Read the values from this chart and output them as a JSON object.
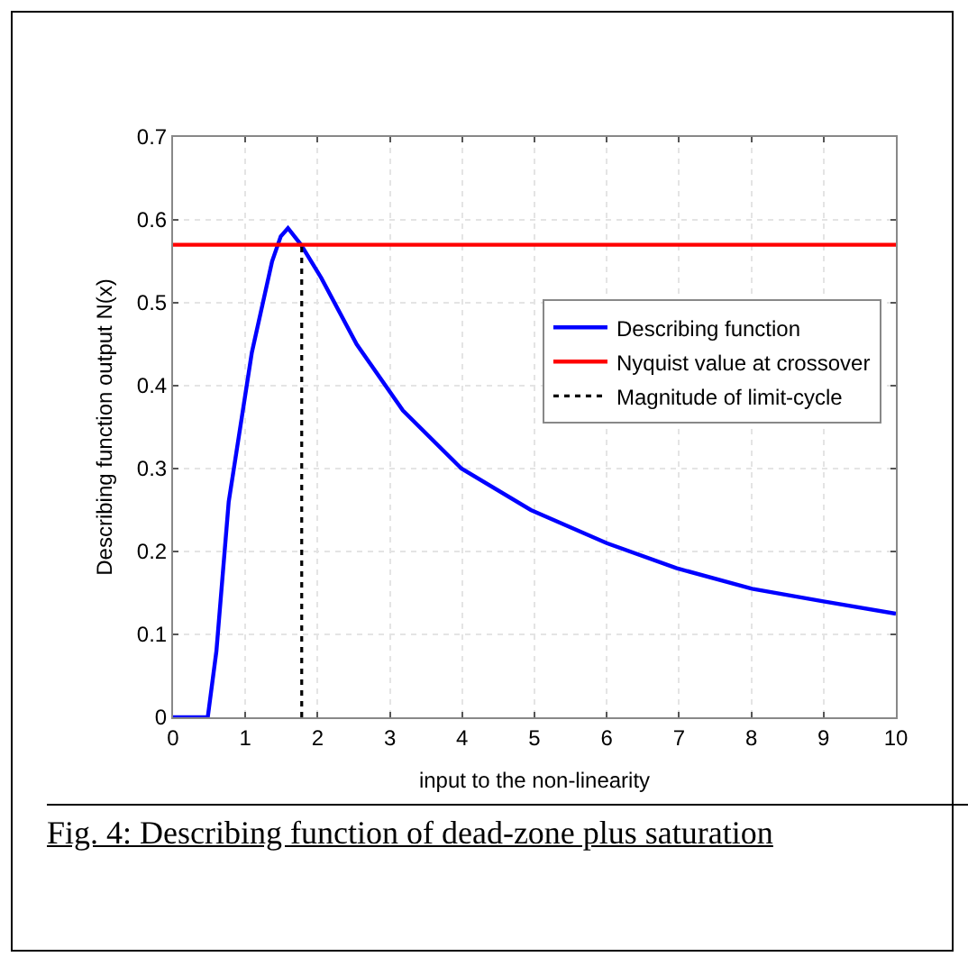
{
  "chart_data": {
    "type": "line",
    "xlabel": "input to the non-linearity",
    "ylabel": "Describing function output N(x)",
    "xlim": [
      0,
      10
    ],
    "xticks": [
      0,
      1,
      2,
      3,
      4,
      5,
      6,
      7,
      8,
      9,
      10
    ],
    "ylim": [
      0,
      0.7
    ],
    "yticks": [
      0,
      0.1,
      0.2,
      0.3,
      0.4,
      0.5,
      0.6,
      0.7
    ],
    "grid": true,
    "legend": "right",
    "marker": "none",
    "series": [
      {
        "name": "Describing function",
        "color": "#0000ff",
        "line_style": "solid",
        "x": [
          0,
          0.48,
          0.6,
          0.77,
          1.09,
          1.37,
          1.49,
          1.59,
          1.77,
          2.05,
          2.54,
          3.18,
          3.99,
          4.95,
          6.0,
          6.96,
          8.01,
          8.98,
          10
        ],
        "values": [
          0,
          0,
          0.08,
          0.26,
          0.44,
          0.55,
          0.58,
          0.59,
          0.57,
          0.53,
          0.45,
          0.37,
          0.3,
          0.25,
          0.21,
          0.18,
          0.155,
          0.14,
          0.125
        ]
      },
      {
        "name": "Nyquist value at crossover",
        "color": "#ff0000",
        "line_style": "solid",
        "x": [
          0,
          10
        ],
        "values": [
          0.57,
          0.57
        ]
      },
      {
        "name": "Magnitude of limit-cycle",
        "color": "#000000",
        "line_style": "dotted",
        "x": [
          1.78,
          1.78
        ],
        "values": [
          0,
          0.57
        ]
      }
    ],
    "annotations": [
      "Fig. 4:  Describing function of dead-zone plus saturation"
    ]
  }
}
